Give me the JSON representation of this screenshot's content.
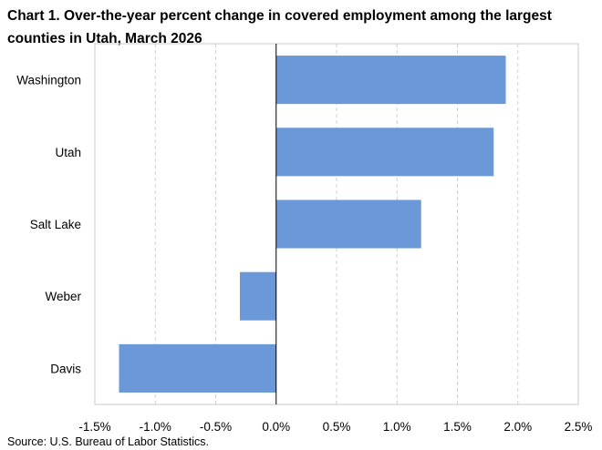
{
  "chart_data": {
    "type": "bar",
    "orientation": "horizontal",
    "title": "Chart 1. Over-the-year percent change in covered employment among the largest counties in Utah, March 2026",
    "categories": [
      "Washington",
      "Utah",
      "Salt Lake",
      "Weber",
      "Davis"
    ],
    "values": [
      1.9,
      1.8,
      1.2,
      -0.3,
      -1.3
    ],
    "xlim": [
      -1.5,
      2.5
    ],
    "x_ticks": [
      -1.5,
      -1.0,
      -0.5,
      0.0,
      0.5,
      1.0,
      1.5,
      2.0,
      2.5
    ],
    "x_tick_labels": [
      "-1.5%",
      "-1.0%",
      "-0.5%",
      "0.0%",
      "0.5%",
      "1.0%",
      "1.5%",
      "2.0%",
      "2.5%"
    ],
    "xlabel": "",
    "ylabel": "",
    "grid": "vertical dashed",
    "bar_color": "#6a98d8"
  },
  "source": "Source: U.S. Bureau of Labor Statistics."
}
